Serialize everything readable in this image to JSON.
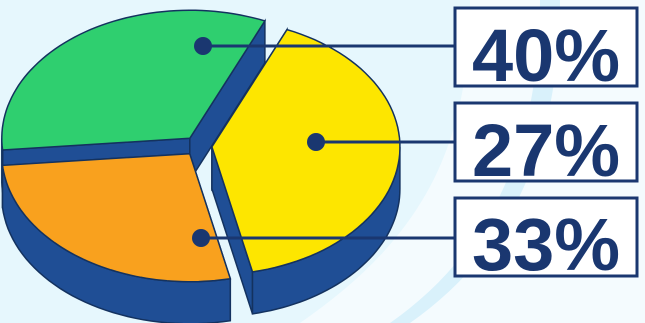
{
  "chart_data": {
    "type": "pie",
    "style": "3d-exploded",
    "slices": [
      {
        "label": "40%",
        "value": 40,
        "color": "#fde600"
      },
      {
        "label": "27%",
        "value": 27,
        "color": "#f9a11e"
      },
      {
        "label": "33%",
        "value": 33,
        "color": "#2fcf6f"
      }
    ],
    "side_color": "#1f4e95",
    "leader_color": "#1a3770",
    "label_box_fill": "#ffffff",
    "background_color": "#e6f7fd"
  }
}
